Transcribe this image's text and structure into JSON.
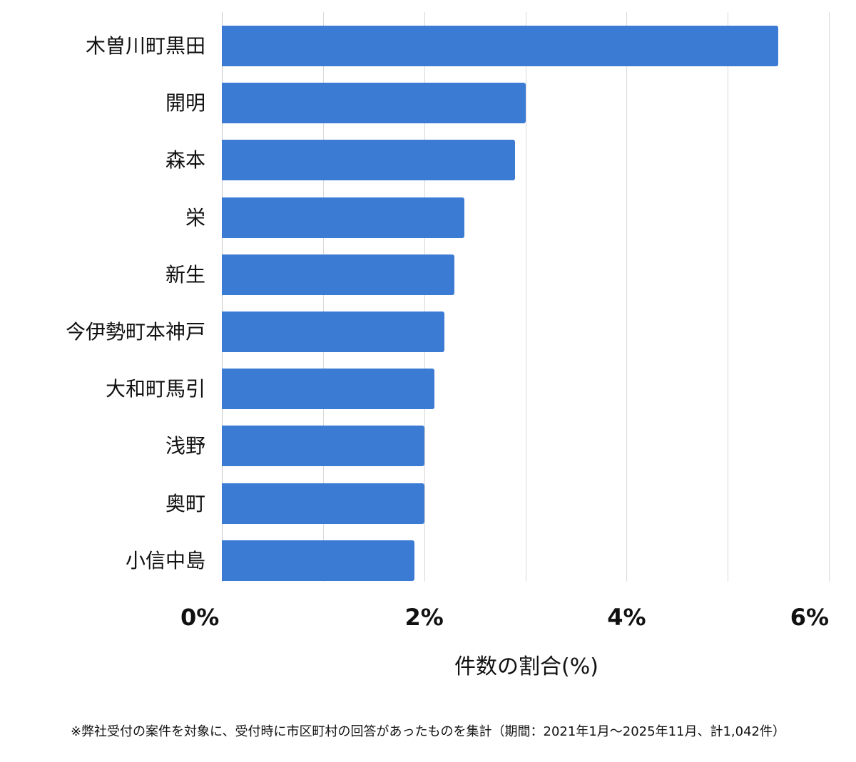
{
  "chart_data": {
    "type": "bar",
    "orientation": "horizontal",
    "title": "",
    "xlabel": "件数の割合(%)",
    "ylabel": "",
    "xlim": [
      0,
      6
    ],
    "x_ticks": [
      "0%",
      "2%",
      "4%",
      "6%"
    ],
    "grid": true,
    "legend": null,
    "categories": [
      "木曽川町黒田",
      "開明",
      "森本",
      "栄",
      "新生",
      "今伊勢町本神戸",
      "大和町馬引",
      "浅野",
      "奥町",
      "小信中島"
    ],
    "values": [
      5.5,
      3.0,
      2.9,
      2.4,
      2.3,
      2.2,
      2.1,
      2.0,
      2.0,
      1.9
    ],
    "bar_color": "#3c7bd4",
    "footnote": "※弊社受付の案件を対象に、受付時に市区町村の回答があったものを集計（期間：2021年1月〜2025年11月、計1,042件）"
  },
  "labels": {
    "xlabel": "件数の割合(%)",
    "ticks": [
      "0%",
      "2%",
      "4%",
      "6%"
    ],
    "categories": [
      "木曽川町黒田",
      "開明",
      "森本",
      "栄",
      "新生",
      "今伊勢町本神戸",
      "大和町馬引",
      "浅野",
      "奥町",
      "小信中島"
    ],
    "footnote": "※弊社受付の案件を対象に、受付時に市区町村の回答があったものを集計（期間：2021年1月〜2025年11月、計1,042件）"
  }
}
